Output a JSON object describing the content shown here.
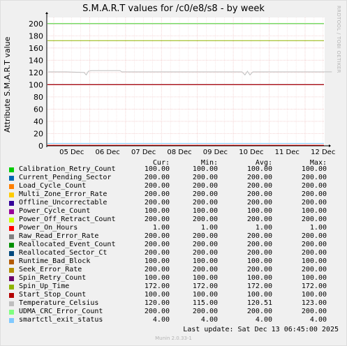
{
  "title": "S.M.A.R.T values for /c0/e8/s8 - by week",
  "side_text": "RRDTOOL / TOBI OETIKER",
  "footer": "Munin 2.0.33-1",
  "last_update": "Last update:  Sat Dec 13 06:45:00 2025",
  "columns": {
    "cur": "Cur:",
    "min": "Min:",
    "avg": "Avg:",
    "max": "Max:"
  },
  "legend": [
    {
      "name": "Calibration_Retry_Count",
      "color": "#00cc00",
      "cur": "100.00",
      "min": "100.00",
      "avg": "100.00",
      "max": "100.00"
    },
    {
      "name": "Current_Pending_Sector",
      "color": "#0066b3",
      "cur": "200.00",
      "min": "200.00",
      "avg": "200.00",
      "max": "200.00"
    },
    {
      "name": "Load_Cycle_Count",
      "color": "#ff8000",
      "cur": "200.00",
      "min": "200.00",
      "avg": "200.00",
      "max": "200.00"
    },
    {
      "name": "Multi_Zone_Error_Rate",
      "color": "#ffcc00",
      "cur": "200.00",
      "min": "200.00",
      "avg": "200.00",
      "max": "200.00"
    },
    {
      "name": "Offline_Uncorrectable",
      "color": "#330099",
      "cur": "200.00",
      "min": "200.00",
      "avg": "200.00",
      "max": "200.00"
    },
    {
      "name": "Power_Cycle_Count",
      "color": "#990099",
      "cur": "100.00",
      "min": "100.00",
      "avg": "100.00",
      "max": "100.00"
    },
    {
      "name": "Power_Off_Retract_Count",
      "color": "#ccff00",
      "cur": "200.00",
      "min": "200.00",
      "avg": "200.00",
      "max": "200.00"
    },
    {
      "name": "Power_On_Hours",
      "color": "#ff0000",
      "cur": "1.00",
      "min": "1.00",
      "avg": "1.00",
      "max": "1.00"
    },
    {
      "name": "Raw_Read_Error_Rate",
      "color": "#808080",
      "cur": "200.00",
      "min": "200.00",
      "avg": "200.00",
      "max": "200.00"
    },
    {
      "name": "Reallocated_Event_Count",
      "color": "#008f00",
      "cur": "200.00",
      "min": "200.00",
      "avg": "200.00",
      "max": "200.00"
    },
    {
      "name": "Reallocated_Sector_Ct",
      "color": "#00487d",
      "cur": "200.00",
      "min": "200.00",
      "avg": "200.00",
      "max": "200.00"
    },
    {
      "name": "Runtime_Bad_Block",
      "color": "#b35a00",
      "cur": "100.00",
      "min": "100.00",
      "avg": "100.00",
      "max": "100.00"
    },
    {
      "name": "Seek_Error_Rate",
      "color": "#b38f00",
      "cur": "200.00",
      "min": "200.00",
      "avg": "200.00",
      "max": "200.00"
    },
    {
      "name": "Spin_Retry_Count",
      "color": "#6b006b",
      "cur": "100.00",
      "min": "100.00",
      "avg": "100.00",
      "max": "100.00"
    },
    {
      "name": "Spin_Up_Time",
      "color": "#8fb300",
      "cur": "172.00",
      "min": "172.00",
      "avg": "172.00",
      "max": "172.00"
    },
    {
      "name": "Start_Stop_Count",
      "color": "#b30000",
      "cur": "100.00",
      "min": "100.00",
      "avg": "100.00",
      "max": "100.00"
    },
    {
      "name": "Temperature_Celsius",
      "color": "#bebebe",
      "cur": "120.00",
      "min": "115.00",
      "avg": "120.51",
      "max": "123.00"
    },
    {
      "name": "UDMA_CRC_Error_Count",
      "color": "#80ff80",
      "cur": "200.00",
      "min": "200.00",
      "avg": "200.00",
      "max": "200.00"
    },
    {
      "name": "smartctl_exit_status",
      "color": "#80c9ff",
      "cur": "4.00",
      "min": "4.00",
      "avg": "4.00",
      "max": "4.00"
    }
  ],
  "chart_data": {
    "type": "line",
    "title": "S.M.A.R.T values for /c0/e8/s8 - by week",
    "ylabel": "Attribute S.M.A.R.T value",
    "ylim": [
      0,
      210
    ],
    "yticks": [
      0,
      20,
      40,
      60,
      80,
      100,
      120,
      140,
      160,
      180,
      200
    ],
    "xticks": [
      "05 Dec",
      "06 Dec",
      "07 Dec",
      "08 Dec",
      "09 Dec",
      "10 Dec",
      "11 Dec",
      "12 Dec"
    ],
    "grid": true,
    "colors": {
      "background": "#ffffff",
      "grid": "#f0c8c8",
      "axis": "#000000"
    },
    "series": [
      {
        "name": "Calibration_Retry_Count",
        "color": "#00cc00",
        "values": [
          100,
          100,
          100,
          100,
          100,
          100,
          100,
          100,
          100
        ]
      },
      {
        "name": "Current_Pending_Sector",
        "color": "#0066b3",
        "values": [
          200,
          200,
          200,
          200,
          200,
          200,
          200,
          200,
          200
        ]
      },
      {
        "name": "Load_Cycle_Count",
        "color": "#ff8000",
        "values": [
          200,
          200,
          200,
          200,
          200,
          200,
          200,
          200,
          200
        ]
      },
      {
        "name": "Multi_Zone_Error_Rate",
        "color": "#ffcc00",
        "values": [
          200,
          200,
          200,
          200,
          200,
          200,
          200,
          200,
          200
        ]
      },
      {
        "name": "Offline_Uncorrectable",
        "color": "#330099",
        "values": [
          200,
          200,
          200,
          200,
          200,
          200,
          200,
          200,
          200
        ]
      },
      {
        "name": "Power_Cycle_Count",
        "color": "#990099",
        "values": [
          100,
          100,
          100,
          100,
          100,
          100,
          100,
          100,
          100
        ]
      },
      {
        "name": "Power_Off_Retract_Count",
        "color": "#ccff00",
        "values": [
          200,
          200,
          200,
          200,
          200,
          200,
          200,
          200,
          200
        ]
      },
      {
        "name": "Power_On_Hours",
        "color": "#ff0000",
        "values": [
          1,
          1,
          1,
          1,
          1,
          1,
          1,
          1,
          1
        ]
      },
      {
        "name": "Raw_Read_Error_Rate",
        "color": "#808080",
        "values": [
          200,
          200,
          200,
          200,
          200,
          200,
          200,
          200,
          200
        ]
      },
      {
        "name": "Reallocated_Event_Count",
        "color": "#008f00",
        "values": [
          200,
          200,
          200,
          200,
          200,
          200,
          200,
          200,
          200
        ]
      },
      {
        "name": "Reallocated_Sector_Ct",
        "color": "#00487d",
        "values": [
          200,
          200,
          200,
          200,
          200,
          200,
          200,
          200,
          200
        ]
      },
      {
        "name": "Runtime_Bad_Block",
        "color": "#b35a00",
        "values": [
          100,
          100,
          100,
          100,
          100,
          100,
          100,
          100,
          100
        ]
      },
      {
        "name": "Seek_Error_Rate",
        "color": "#b38f00",
        "values": [
          200,
          200,
          200,
          200,
          200,
          200,
          200,
          200,
          200
        ]
      },
      {
        "name": "Spin_Retry_Count",
        "color": "#6b006b",
        "values": [
          100,
          100,
          100,
          100,
          100,
          100,
          100,
          100,
          100
        ]
      },
      {
        "name": "Spin_Up_Time",
        "color": "#8fb300",
        "values": [
          172,
          172,
          172,
          172,
          172,
          172,
          172,
          172,
          172
        ]
      },
      {
        "name": "Start_Stop_Count",
        "color": "#b30000",
        "values": [
          100,
          100,
          100,
          100,
          100,
          100,
          100,
          100,
          100
        ]
      },
      {
        "name": "Temperature_Celsius",
        "color": "#bebebe",
        "x": [
          0,
          0.5,
          1.0,
          1.06,
          1.12,
          1.2,
          2.0,
          2.05,
          3.0,
          4.0,
          5.0,
          5.4,
          5.48,
          5.55,
          5.62,
          5.7,
          6.0,
          7.0,
          7.9
        ],
        "values": [
          121,
          121,
          120,
          116,
          122,
          123,
          123,
          121,
          121,
          121,
          121,
          121,
          116,
          122,
          116,
          121,
          121,
          121,
          121
        ]
      },
      {
        "name": "UDMA_CRC_Error_Count",
        "color": "#80ff80",
        "values": [
          200,
          200,
          200,
          200,
          200,
          200,
          200,
          200,
          200
        ]
      },
      {
        "name": "smartctl_exit_status",
        "color": "#80c9ff",
        "values": [
          4,
          4,
          4,
          4,
          4,
          4,
          4,
          4,
          4
        ]
      }
    ]
  }
}
